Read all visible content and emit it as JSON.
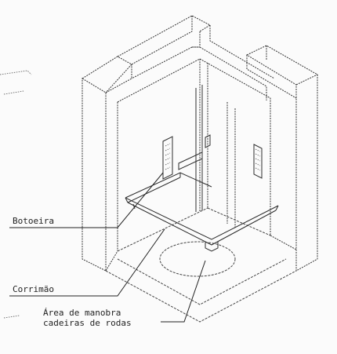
{
  "labels": {
    "botoeira": "Botoeira",
    "corrimao": "Corrimão",
    "area_line1": "Área de manobra",
    "area_line2": "cadeiras de rodas"
  }
}
